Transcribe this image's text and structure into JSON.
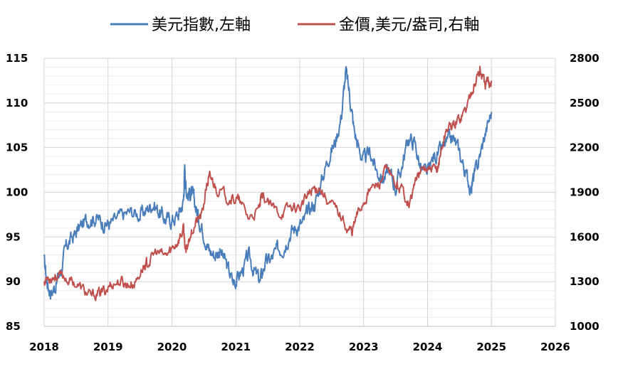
{
  "chart_data": {
    "type": "line",
    "legend": {
      "position": "top-center",
      "entries": [
        "美元指數,左軸",
        "金價,美元/盎司,右軸"
      ]
    },
    "x_ticks": [
      "2018",
      "2019",
      "2020",
      "2021",
      "2022",
      "2023",
      "2024",
      "2025",
      "2026"
    ],
    "y_left": {
      "ticks": [
        "85",
        "90",
        "95",
        "100",
        "105",
        "110",
        "115"
      ],
      "lim": [
        85,
        115
      ]
    },
    "y_right": {
      "ticks": [
        "1000",
        "1300",
        "1600",
        "1900",
        "2200",
        "2500",
        "2800"
      ],
      "lim": [
        1000,
        2800
      ]
    },
    "xlim": [
      2018.0,
      2026.0
    ],
    "grid": true,
    "series": [
      {
        "name": "美元指數,左軸",
        "axis": "left",
        "color": "#4a7ebb",
        "x": [
          2018.0,
          2018.06,
          2018.12,
          2018.2,
          2018.27,
          2018.35,
          2018.45,
          2018.55,
          2018.65,
          2018.75,
          2018.85,
          2018.95,
          2019.05,
          2019.2,
          2019.35,
          2019.5,
          2019.6,
          2019.7,
          2019.8,
          2019.9,
          2020.0,
          2020.1,
          2020.18,
          2020.2,
          2020.22,
          2020.25,
          2020.3,
          2020.35,
          2020.42,
          2020.5,
          2020.58,
          2020.67,
          2020.75,
          2020.85,
          2020.95,
          2021.0,
          2021.1,
          2021.2,
          2021.3,
          2021.38,
          2021.45,
          2021.55,
          2021.65,
          2021.75,
          2021.85,
          2021.95,
          2022.05,
          2022.15,
          2022.25,
          2022.35,
          2022.45,
          2022.55,
          2022.65,
          2022.72,
          2022.78,
          2022.85,
          2022.92,
          2023.0,
          2023.1,
          2023.2,
          2023.3,
          2023.4,
          2023.5,
          2023.6,
          2023.7,
          2023.8,
          2023.9,
          2024.0,
          2024.1,
          2024.2,
          2024.3,
          2024.4,
          2024.5,
          2024.6,
          2024.68,
          2024.72,
          2024.8,
          2024.9,
          2025.0
        ],
        "y": [
          92.3,
          89.5,
          88.8,
          90.0,
          91.5,
          94.0,
          95.0,
          96.0,
          96.8,
          97.2,
          97.0,
          96.5,
          96.5,
          97.3,
          97.8,
          97.5,
          98.0,
          98.8,
          97.8,
          97.0,
          96.9,
          97.5,
          99.0,
          102.8,
          100.5,
          99.8,
          100.0,
          99.0,
          97.0,
          95.5,
          93.5,
          93.0,
          93.5,
          92.0,
          90.0,
          90.2,
          91.2,
          92.8,
          91.0,
          90.0,
          92.0,
          92.5,
          93.5,
          94.0,
          95.5,
          96.2,
          96.5,
          98.0,
          99.0,
          101.5,
          104.0,
          105.5,
          108.5,
          113.5,
          111.0,
          107.0,
          105.0,
          103.5,
          104.5,
          102.5,
          101.5,
          102.5,
          100.5,
          103.0,
          106.0,
          105.5,
          102.5,
          102.0,
          104.0,
          104.5,
          105.5,
          106.0,
          104.5,
          102.0,
          100.5,
          101.5,
          103.5,
          106.5,
          109.0
        ]
      },
      {
        "name": "金價,美元/盎司,右軸",
        "axis": "right",
        "color": "#c0504d",
        "x": [
          2018.0,
          2018.08,
          2018.18,
          2018.3,
          2018.45,
          2018.6,
          2018.72,
          2018.85,
          2018.95,
          2019.05,
          2019.2,
          2019.3,
          2019.42,
          2019.55,
          2019.62,
          2019.75,
          2019.9,
          2020.0,
          2020.1,
          2020.18,
          2020.22,
          2020.28,
          2020.38,
          2020.47,
          2020.55,
          2020.6,
          2020.7,
          2020.85,
          2020.95,
          2021.05,
          2021.2,
          2021.35,
          2021.42,
          2021.55,
          2021.7,
          2021.85,
          2022.0,
          2022.12,
          2022.2,
          2022.3,
          2022.45,
          2022.6,
          2022.75,
          2022.82,
          2022.9,
          2023.0,
          2023.1,
          2023.25,
          2023.35,
          2023.5,
          2023.6,
          2023.72,
          2023.82,
          2023.95,
          2024.05,
          2024.15,
          2024.22,
          2024.3,
          2024.4,
          2024.5,
          2024.6,
          2024.7,
          2024.8,
          2024.82,
          2024.9,
          2024.95,
          2025.0
        ],
        "y": [
          1310,
          1330,
          1340,
          1330,
          1300,
          1250,
          1200,
          1220,
          1240,
          1285,
          1300,
          1280,
          1290,
          1400,
          1420,
          1500,
          1470,
          1520,
          1580,
          1650,
          1480,
          1620,
          1700,
          1750,
          1960,
          2000,
          1930,
          1870,
          1860,
          1840,
          1730,
          1770,
          1880,
          1800,
          1760,
          1800,
          1800,
          1870,
          1920,
          1940,
          1840,
          1770,
          1660,
          1640,
          1750,
          1840,
          1920,
          1960,
          2050,
          1950,
          1920,
          1830,
          1990,
          2060,
          2040,
          2050,
          2190,
          2330,
          2350,
          2400,
          2460,
          2600,
          2700,
          2720,
          2620,
          2640,
          2650
        ]
      }
    ]
  }
}
